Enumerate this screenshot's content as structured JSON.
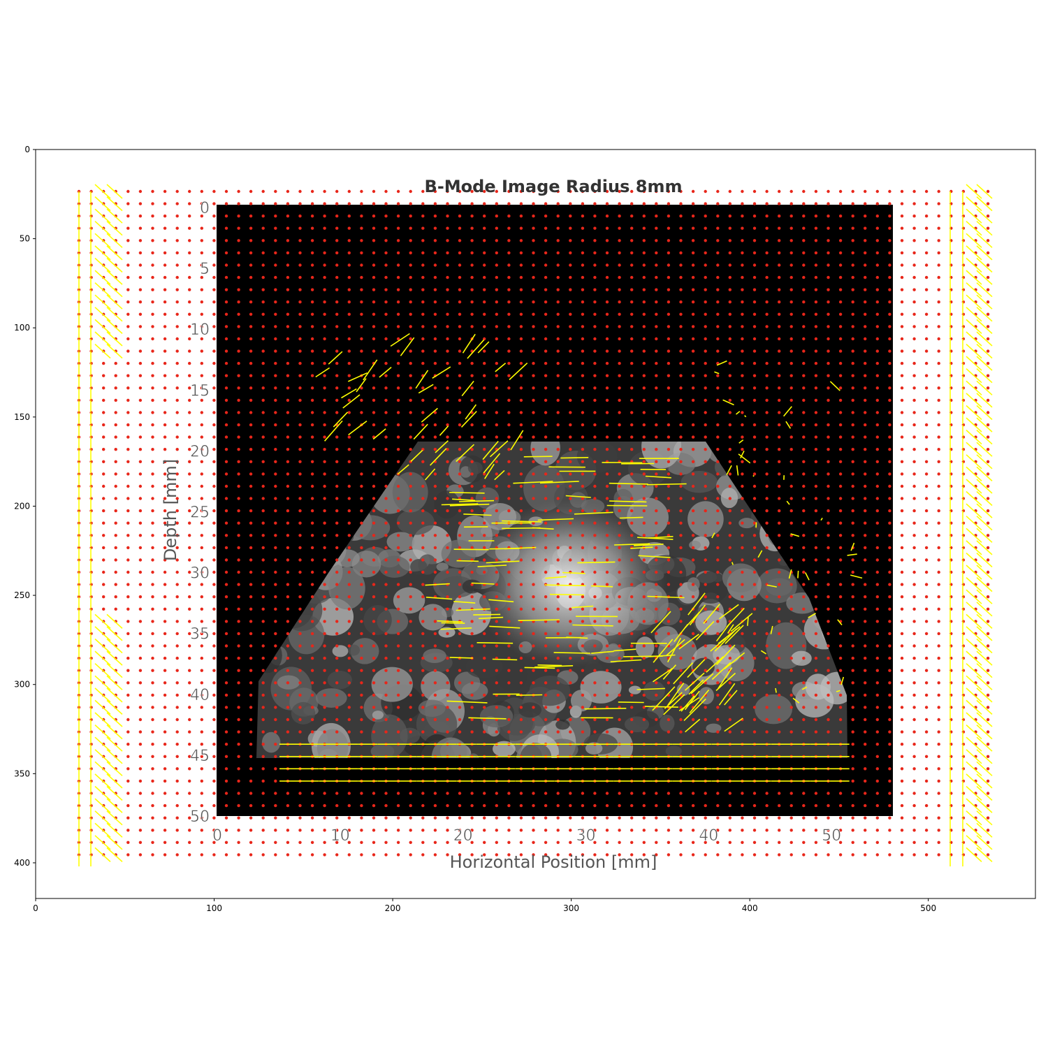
{
  "chart_data": [
    {
      "type": "image",
      "role": "outer-axes",
      "xlim": [
        0,
        560
      ],
      "ylim": [
        420,
        0
      ],
      "x_ticks": [
        0,
        100,
        200,
        300,
        400,
        500
      ],
      "y_ticks": [
        0,
        50,
        100,
        150,
        200,
        250,
        300,
        350,
        400
      ],
      "x_tick_labels": [
        "0",
        "100",
        "200",
        "300",
        "400",
        "500"
      ],
      "y_tick_labels": [
        "0",
        "50",
        "100",
        "150",
        "200",
        "250",
        "300",
        "350",
        "400"
      ]
    },
    {
      "type": "quiver",
      "role": "embedded-bmode-image",
      "title": "B-Mode Image Radius 8mm",
      "xlabel": "Horizontal Position [mm]",
      "ylabel": "Depth [mm]",
      "xlim": [
        0,
        55
      ],
      "ylim": [
        50,
        0
      ],
      "x_ticks": [
        0,
        10,
        20,
        30,
        40,
        50
      ],
      "y_ticks": [
        0,
        5,
        10,
        15,
        20,
        25,
        30,
        35,
        40,
        45,
        50
      ],
      "x_tick_labels": [
        "0",
        "10",
        "20",
        "30",
        "40",
        "50"
      ],
      "y_tick_labels": [
        "0",
        "5",
        "10",
        "15",
        "20",
        "25",
        "30",
        "35",
        "40",
        "45",
        "50"
      ],
      "grid_spacing_mm": 1,
      "marker_color": "#e8261a",
      "arrow_color": "#ffff00",
      "background": "#000000",
      "speckle_color": "#bfbfbf"
    }
  ]
}
